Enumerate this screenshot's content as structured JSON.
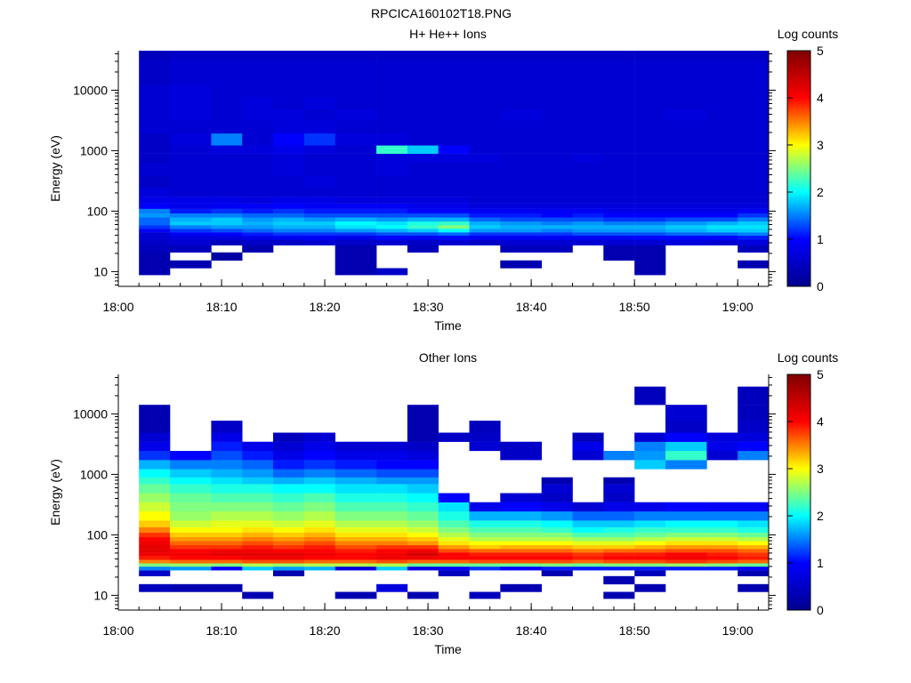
{
  "figure_title": "RPCICA160102T18.PNG",
  "colormap": [
    "#00008f",
    "#0000ff",
    "#00ffff",
    "#ffff00",
    "#ff0000",
    "#800000"
  ],
  "chart_data": [
    {
      "type": "heatmap",
      "title": "H+ He++ Ions",
      "xlabel": "Time",
      "ylabel": "Energy (eV)",
      "colorbar_label": "Log counts",
      "x_tick_labels": [
        "18:00",
        "18:10",
        "18:20",
        "18:30",
        "18:40",
        "18:50",
        "19:00"
      ],
      "xlim": [
        "18:00",
        "19:03"
      ],
      "y_scale": "log",
      "y_tick_labels": [
        "10",
        "100",
        "1000",
        "10000"
      ],
      "ylim": [
        5.7,
        45000
      ],
      "colorbar_range": [
        0,
        5
      ],
      "colorbar_tick_labels": [
        "0",
        "1",
        "2",
        "3",
        "4",
        "5"
      ],
      "time_bins": [
        "18:02",
        "18:05",
        "18:09",
        "18:12",
        "18:15",
        "18:18",
        "18:21",
        "18:25",
        "18:28",
        "18:31",
        "18:34",
        "18:37",
        "18:41",
        "18:44",
        "18:47",
        "18:50",
        "18:53",
        "18:57",
        "19:00"
      ],
      "energy_bins_eV": [
        10,
        13,
        18,
        24,
        31,
        37,
        42,
        48,
        55,
        63,
        73,
        85,
        100,
        120,
        150,
        200,
        300,
        500,
        800,
        1000,
        1500,
        2500,
        4000,
        6000,
        10000,
        15000,
        25000,
        40000
      ],
      "log_counts": [
        [
          0.3,
          0.3,
          0.3,
          0.4,
          0.5,
          0.6,
          0.6,
          0.9,
          1.2,
          1.4,
          1.4,
          1.6,
          1.5,
          1.0,
          0.8,
          0.7,
          0.5,
          0.6,
          0.5,
          0.5,
          0.5,
          0.6,
          0.6,
          0.6,
          0.6,
          0.5,
          0.5,
          0.4
        ],
        [
          0,
          0.3,
          0,
          0.4,
          0.6,
          0.7,
          0.9,
          1.2,
          1.5,
          1.8,
          1.7,
          1.5,
          1.1,
          0.8,
          0.8,
          0.6,
          0.6,
          0.6,
          0.6,
          0.6,
          0.7,
          0.6,
          0.7,
          0.7,
          0.7,
          0.6,
          0.6,
          0.5
        ],
        [
          0,
          0,
          0.2,
          0,
          0.4,
          0.7,
          1.0,
          1.3,
          1.6,
          1.8,
          1.8,
          1.5,
          1.2,
          0.9,
          0.8,
          0.6,
          0.6,
          0.6,
          0.6,
          0.7,
          1.5,
          0.6,
          0.6,
          0.6,
          0.6,
          0.6,
          0.6,
          0.5
        ],
        [
          0,
          0,
          0,
          0.3,
          0.5,
          0.8,
          1.1,
          1.4,
          1.6,
          1.7,
          1.6,
          1.4,
          1.1,
          0.9,
          0.7,
          0.6,
          0.6,
          0.6,
          0.6,
          0.7,
          0.6,
          0.6,
          0.7,
          0.7,
          0.6,
          0.6,
          0.6,
          0.5
        ],
        [
          0,
          0,
          0,
          0,
          0.5,
          0.9,
          1.2,
          1.5,
          1.7,
          1.8,
          1.7,
          1.4,
          1.2,
          1.0,
          0.8,
          0.6,
          0.6,
          0.7,
          0.7,
          0.8,
          1.0,
          0.7,
          0.7,
          0.6,
          0.6,
          0.6,
          0.6,
          0.5
        ],
        [
          0,
          0,
          0,
          0,
          0.6,
          0.9,
          1.2,
          1.5,
          1.7,
          1.8,
          1.6,
          1.3,
          1.1,
          0.9,
          0.8,
          0.6,
          0.7,
          0.6,
          0.6,
          0.7,
          1.2,
          0.7,
          0.6,
          0.7,
          0.6,
          0.6,
          0.6,
          0.5
        ],
        [
          0.3,
          0.3,
          0.3,
          0.3,
          0.5,
          0.8,
          1.2,
          1.6,
          1.9,
          2.0,
          1.7,
          1.3,
          1.1,
          0.9,
          0.7,
          0.6,
          0.6,
          0.6,
          0.6,
          0.6,
          0.7,
          0.6,
          0.7,
          0.6,
          0.6,
          0.6,
          0.6,
          0.5
        ],
        [
          0.5,
          0,
          0,
          0,
          0.6,
          1.0,
          1.3,
          1.7,
          2.0,
          1.9,
          1.6,
          1.3,
          1.1,
          0.9,
          0.7,
          0.6,
          0.6,
          0.7,
          0.7,
          2.2,
          0.7,
          0.6,
          0.6,
          0.6,
          0.6,
          0.6,
          0.6,
          0.5
        ],
        [
          0,
          0,
          0,
          0.4,
          0.5,
          0.9,
          1.3,
          1.8,
          2.2,
          2.1,
          1.7,
          1.3,
          1.0,
          0.8,
          0.7,
          0.6,
          0.6,
          0.6,
          0.7,
          1.8,
          0.6,
          0.6,
          0.6,
          0.6,
          0.6,
          0.6,
          0.6,
          0.5
        ],
        [
          0,
          0,
          0,
          0,
          0.6,
          1.0,
          1.4,
          2.0,
          2.5,
          2.2,
          1.7,
          1.3,
          1.0,
          0.8,
          0.7,
          0.6,
          0.6,
          0.6,
          0.7,
          1.0,
          0.6,
          0.6,
          0.6,
          0.6,
          0.6,
          0.6,
          0.6,
          0.5
        ],
        [
          0,
          0,
          0,
          0,
          0.5,
          0.9,
          1.2,
          1.6,
          1.8,
          1.7,
          1.4,
          1.1,
          0.9,
          0.7,
          0.6,
          0.6,
          0.6,
          0.6,
          0.7,
          0.6,
          0.6,
          0.6,
          0.6,
          0.6,
          0.6,
          0.6,
          0.6,
          0.5
        ],
        [
          0,
          0.3,
          0,
          0.4,
          0.6,
          0.9,
          1.2,
          1.6,
          1.7,
          1.6,
          1.3,
          1.1,
          0.9,
          0.7,
          0.6,
          0.6,
          0.6,
          0.6,
          0.6,
          0.6,
          0.6,
          0.6,
          0.7,
          0.6,
          0.6,
          0.6,
          0.6,
          0.5
        ],
        [
          0,
          0,
          0,
          0.4,
          0.6,
          0.9,
          1.2,
          1.5,
          1.7,
          1.5,
          1.3,
          1.0,
          0.9,
          0.7,
          0.6,
          0.6,
          0.6,
          0.6,
          0.6,
          0.6,
          0.6,
          0.6,
          0.6,
          0.6,
          0.6,
          0.6,
          0.6,
          0.5
        ],
        [
          0,
          0,
          0,
          0,
          0.6,
          0.9,
          1.3,
          1.6,
          1.7,
          1.6,
          1.3,
          1.1,
          0.9,
          0.7,
          0.6,
          0.6,
          0.6,
          0.6,
          0.7,
          0.6,
          0.6,
          0.6,
          0.6,
          0.6,
          0.6,
          0.6,
          0.6,
          0.5
        ],
        [
          0,
          0,
          0.3,
          0.3,
          0.6,
          0.9,
          1.3,
          1.6,
          1.7,
          1.5,
          1.2,
          1.0,
          0.8,
          0.7,
          0.6,
          0.6,
          0.6,
          0.6,
          0.6,
          0.6,
          0.6,
          0.6,
          0.6,
          0.6,
          0.6,
          0.6,
          0.6,
          0.5
        ],
        [
          0.3,
          0.3,
          0.3,
          0.3,
          0.6,
          1.0,
          1.3,
          1.6,
          1.7,
          1.5,
          1.2,
          1.0,
          0.8,
          0.7,
          0.6,
          0.6,
          0.6,
          0.6,
          0.6,
          0.6,
          0.6,
          0.6,
          0.6,
          0.6,
          0.6,
          0.6,
          0.6,
          0.5
        ],
        [
          0,
          0,
          0,
          0,
          0.7,
          1.0,
          1.4,
          1.7,
          1.8,
          1.6,
          1.3,
          1.0,
          0.8,
          0.7,
          0.6,
          0.6,
          0.6,
          0.6,
          0.6,
          0.6,
          0.6,
          0.6,
          0.7,
          0.6,
          0.6,
          0.6,
          0.6,
          0.5
        ],
        [
          0,
          0,
          0,
          0,
          0.6,
          1.0,
          1.4,
          1.8,
          1.9,
          1.7,
          1.3,
          1.0,
          0.8,
          0.7,
          0.6,
          0.6,
          0.6,
          0.6,
          0.6,
          0.6,
          0.6,
          0.6,
          0.6,
          0.6,
          0.6,
          0.6,
          0.6,
          0.5
        ],
        [
          0,
          0.3,
          0,
          0.4,
          0.7,
          1.1,
          1.5,
          1.8,
          1.9,
          1.8,
          1.5,
          1.2,
          0.9,
          0.7,
          0.6,
          0.6,
          0.6,
          0.6,
          0.6,
          0.6,
          0.6,
          0.6,
          0.6,
          0.6,
          0.6,
          0.6,
          0.6,
          0.5
        ]
      ]
    },
    {
      "type": "heatmap",
      "title": "Other Ions",
      "xlabel": "Time",
      "ylabel": "Energy (eV)",
      "colorbar_label": "Log counts",
      "x_tick_labels": [
        "18:00",
        "18:10",
        "18:20",
        "18:30",
        "18:40",
        "18:50",
        "19:00"
      ],
      "xlim": [
        "18:00",
        "19:03"
      ],
      "y_scale": "log",
      "y_tick_labels": [
        "10",
        "100",
        "1000",
        "10000"
      ],
      "ylim": [
        5.7,
        45000
      ],
      "colorbar_range": [
        0,
        5
      ],
      "colorbar_tick_labels": [
        "0",
        "1",
        "2",
        "3",
        "4",
        "5"
      ],
      "time_bins": [
        "18:02",
        "18:05",
        "18:09",
        "18:12",
        "18:15",
        "18:18",
        "18:21",
        "18:25",
        "18:28",
        "18:31",
        "18:34",
        "18:37",
        "18:41",
        "18:44",
        "18:47",
        "18:50",
        "18:53",
        "18:57",
        "19:00"
      ],
      "energy_bins_eV": [
        10,
        13,
        18,
        24,
        28,
        32,
        36,
        42,
        48,
        55,
        63,
        73,
        85,
        100,
        120,
        150,
        200,
        300,
        400,
        600,
        800,
        1000,
        1500,
        2000,
        3000,
        4000,
        6000,
        10000,
        20000
      ],
      "log_counts": [
        [
          0,
          0.4,
          0,
          0.5,
          1.5,
          2.5,
          3.5,
          3.9,
          4.1,
          4.2,
          4.2,
          4.1,
          4.0,
          3.8,
          3.5,
          3.2,
          3.0,
          2.8,
          2.6,
          2.4,
          2.2,
          2.0,
          1.7,
          1.2,
          0.8,
          0.6,
          0.3,
          0.3,
          0
        ],
        [
          0,
          0.3,
          0,
          0,
          1.6,
          2.6,
          3.6,
          4.0,
          4.1,
          4.0,
          3.8,
          3.6,
          3.4,
          3.2,
          3.0,
          2.8,
          2.6,
          2.5,
          2.4,
          2.2,
          2.0,
          1.8,
          1.5,
          1.0,
          0,
          0,
          0,
          0,
          0
        ],
        [
          0,
          0.3,
          0,
          0,
          1.0,
          2.5,
          3.6,
          4.0,
          4.2,
          4.1,
          3.8,
          3.6,
          3.4,
          3.2,
          3.0,
          2.9,
          2.7,
          2.5,
          2.3,
          2.1,
          1.9,
          1.7,
          1.5,
          1.3,
          1.1,
          0.8,
          0.5,
          0,
          0
        ],
        [
          0.3,
          0,
          0,
          0,
          1.8,
          2.7,
          3.7,
          4.1,
          4.2,
          4.1,
          3.9,
          3.7,
          3.5,
          3.3,
          3.1,
          2.9,
          2.7,
          2.5,
          2.3,
          2.1,
          1.8,
          1.6,
          1.4,
          1.1,
          0.8,
          0,
          0,
          0,
          0
        ],
        [
          0,
          0,
          0,
          0.3,
          1.6,
          2.6,
          3.7,
          4.1,
          4.2,
          4.0,
          3.8,
          3.6,
          3.4,
          3.2,
          3.0,
          2.8,
          2.6,
          2.4,
          2.2,
          2.0,
          1.7,
          1.4,
          1.1,
          0.8,
          0.6,
          0.4,
          0,
          0,
          0
        ],
        [
          0,
          0,
          0,
          0,
          1.7,
          2.7,
          3.6,
          4.0,
          4.1,
          4.0,
          3.9,
          3.7,
          3.5,
          3.3,
          3.1,
          2.9,
          2.7,
          2.5,
          2.3,
          2.0,
          1.8,
          1.5,
          1.2,
          1.0,
          0.8,
          0.6,
          0,
          0,
          0
        ],
        [
          0.3,
          0,
          0,
          0,
          0.7,
          2.7,
          3.6,
          4.0,
          4.0,
          3.9,
          3.7,
          3.5,
          3.3,
          3.1,
          2.9,
          2.7,
          2.5,
          2.3,
          2.1,
          1.9,
          1.7,
          1.4,
          1.1,
          0.8,
          0.6,
          0,
          0,
          0,
          0
        ],
        [
          0,
          0.7,
          0,
          0,
          1.8,
          2.7,
          3.7,
          4.1,
          4.1,
          4.0,
          3.8,
          3.5,
          3.3,
          3.1,
          2.9,
          2.7,
          2.5,
          2.3,
          2.1,
          1.9,
          1.6,
          1.3,
          1.0,
          0.8,
          0.6,
          0,
          0,
          0,
          0
        ],
        [
          0.3,
          0,
          0,
          0,
          0.8,
          2.4,
          3.6,
          4.1,
          4.3,
          4.1,
          3.8,
          3.4,
          3.2,
          3.0,
          2.8,
          2.6,
          2.4,
          2.2,
          2.0,
          1.8,
          1.6,
          1.3,
          1.0,
          0.7,
          0.5,
          0.3,
          0.3,
          0.3,
          0
        ],
        [
          0,
          0,
          0,
          0.4,
          1.0,
          2.4,
          3.6,
          4.0,
          4.0,
          3.7,
          3.4,
          3.1,
          2.9,
          2.7,
          2.5,
          2.3,
          2.1,
          1.9,
          1.0,
          0,
          0,
          0,
          0,
          0,
          0,
          0.5,
          0,
          0,
          0
        ],
        [
          0.4,
          0,
          0,
          0,
          1.2,
          2.4,
          3.7,
          4.0,
          3.9,
          3.6,
          3.2,
          3.0,
          2.7,
          2.5,
          2.3,
          2.1,
          1.7,
          0.8,
          0,
          0,
          0,
          0,
          0,
          0,
          0.6,
          0.5,
          0.4,
          0,
          0
        ],
        [
          0,
          0.3,
          0,
          0,
          1.0,
          2.4,
          3.7,
          4.0,
          3.9,
          3.6,
          3.3,
          3.0,
          2.7,
          2.5,
          2.3,
          2.1,
          1.7,
          1.0,
          0.6,
          0,
          0,
          0,
          0,
          0.5,
          0.5,
          0,
          0,
          0,
          0
        ],
        [
          0,
          0,
          0,
          0.3,
          1.1,
          2.5,
          3.7,
          4.0,
          3.9,
          3.6,
          3.3,
          3.0,
          2.7,
          2.5,
          2.2,
          2.0,
          1.6,
          0.8,
          0.5,
          0.6,
          0.3,
          0,
          0,
          0,
          0,
          0,
          0,
          0,
          0
        ],
        [
          0,
          0,
          0,
          0,
          1.1,
          2.4,
          3.6,
          3.9,
          3.8,
          3.5,
          3.2,
          2.9,
          2.6,
          2.3,
          2.0,
          1.8,
          1.4,
          0.6,
          0,
          0,
          0,
          0,
          0,
          0.6,
          0.8,
          0.4,
          0,
          0,
          0
        ],
        [
          0.3,
          0,
          0.3,
          0,
          1.1,
          2.5,
          3.7,
          4.0,
          3.9,
          3.6,
          3.2,
          2.9,
          2.6,
          2.3,
          2.1,
          1.8,
          1.4,
          0.8,
          0.5,
          0.6,
          0.3,
          0,
          0,
          1.5,
          0,
          0,
          0,
          0,
          0
        ],
        [
          0,
          0.3,
          0,
          0.4,
          1.1,
          2.5,
          3.7,
          4.0,
          3.9,
          3.6,
          3.3,
          3.0,
          2.7,
          2.4,
          2.2,
          1.9,
          1.5,
          0.8,
          0,
          0,
          0,
          0,
          1.8,
          1.6,
          1.5,
          0.6,
          0,
          0,
          0.4
        ],
        [
          0,
          0,
          0,
          0,
          1.1,
          2.6,
          3.8,
          4.1,
          4.0,
          3.7,
          3.4,
          3.1,
          2.8,
          2.5,
          2.2,
          2.0,
          1.5,
          1.0,
          0,
          0,
          0,
          0,
          1.5,
          2.2,
          1.8,
          1.0,
          0.5,
          0.6,
          0
        ],
        [
          0,
          0,
          0,
          0,
          1.1,
          2.5,
          3.7,
          4.0,
          3.9,
          3.7,
          3.4,
          3.1,
          2.8,
          2.5,
          2.2,
          2.0,
          1.5,
          0.9,
          0,
          0,
          0,
          0,
          0,
          0.6,
          0.8,
          0.7,
          0,
          0,
          0
        ],
        [
          0,
          0.3,
          0,
          0.3,
          1.0,
          2.4,
          3.6,
          3.9,
          3.8,
          3.6,
          3.3,
          3.0,
          2.7,
          2.4,
          2.1,
          1.9,
          1.5,
          0.9,
          0,
          0,
          0,
          0,
          0,
          1.5,
          1.0,
          0.7,
          0.5,
          0.4,
          0.4
        ]
      ]
    }
  ]
}
